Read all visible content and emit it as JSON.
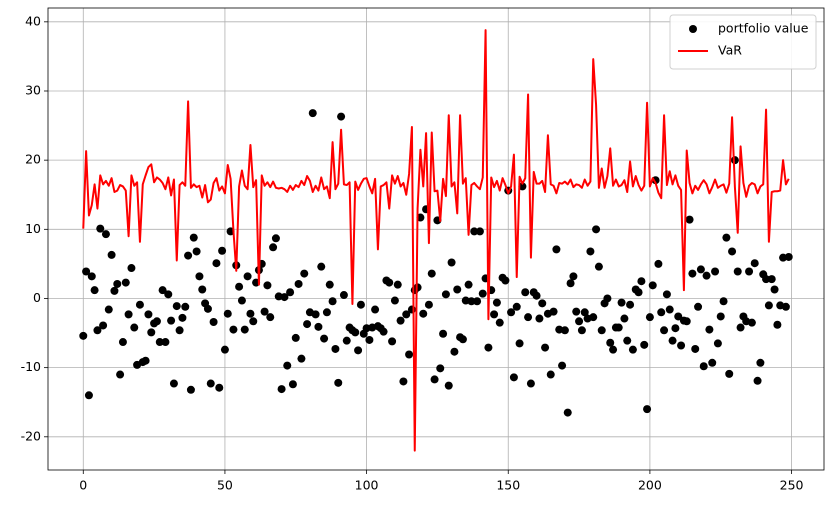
{
  "chart_data": {
    "type": "scatter",
    "x": [
      0,
      1,
      2,
      3,
      4,
      5,
      6,
      7,
      8,
      9,
      10,
      11,
      12,
      13,
      14,
      15,
      16,
      17,
      18,
      19,
      20,
      21,
      22,
      23,
      24,
      25,
      26,
      27,
      28,
      29,
      30,
      31,
      32,
      33,
      34,
      35,
      36,
      37,
      38,
      39,
      40,
      41,
      42,
      43,
      44,
      45,
      46,
      47,
      48,
      49,
      50,
      51,
      52,
      53,
      54,
      55,
      56,
      57,
      58,
      59,
      60,
      61,
      62,
      63,
      64,
      65,
      66,
      67,
      68,
      69,
      70,
      71,
      72,
      73,
      74,
      75,
      76,
      77,
      78,
      79,
      80,
      81,
      82,
      83,
      84,
      85,
      86,
      87,
      88,
      89,
      90,
      91,
      92,
      93,
      94,
      95,
      96,
      97,
      98,
      99,
      100,
      101,
      102,
      103,
      104,
      105,
      106,
      107,
      108,
      109,
      110,
      111,
      112,
      113,
      114,
      115,
      116,
      117,
      118,
      119,
      120,
      121,
      122,
      123,
      124,
      125,
      126,
      127,
      128,
      129,
      130,
      131,
      132,
      133,
      134,
      135,
      136,
      137,
      138,
      139,
      140,
      141,
      142,
      143,
      144,
      145,
      146,
      147,
      148,
      149,
      150,
      151,
      152,
      153,
      154,
      155,
      156,
      157,
      158,
      159,
      160,
      161,
      162,
      163,
      164,
      165,
      166,
      167,
      168,
      169,
      170,
      171,
      172,
      173,
      174,
      175,
      176,
      177,
      178,
      179,
      180,
      181,
      182,
      183,
      184,
      185,
      186,
      187,
      188,
      189,
      190,
      191,
      192,
      193,
      194,
      195,
      196,
      197,
      198,
      199,
      200,
      201,
      202,
      203,
      204,
      205,
      206,
      207,
      208,
      209,
      210,
      211,
      212,
      213,
      214,
      215,
      216,
      217,
      218,
      219,
      220,
      221,
      222,
      223,
      224,
      225,
      226,
      227,
      228,
      229,
      230,
      231,
      232,
      233,
      234,
      235,
      236,
      237,
      238,
      239,
      240,
      241,
      242,
      243,
      244,
      245,
      246,
      247,
      248,
      249
    ],
    "series": [
      {
        "name": "portfolio value",
        "type": "scatter",
        "color": "#000000",
        "values": [
          -5.4,
          3.9,
          -14,
          3.2,
          1.2,
          -4.6,
          10.1,
          -3.9,
          9.3,
          -1.6,
          6.3,
          1.1,
          2.1,
          -11,
          -6.3,
          2.3,
          -2.3,
          4.4,
          -4.2,
          -9.6,
          -0.9,
          -9.2,
          -9,
          -2.3,
          -4.9,
          -3.6,
          -3.3,
          -6.3,
          1.2,
          -6.3,
          0.6,
          -3.2,
          -12.3,
          -1.1,
          -4.6,
          -2.8,
          -1.2,
          6.2,
          -13.2,
          8.8,
          6.8,
          3.2,
          1.3,
          -0.7,
          -1.5,
          -12.3,
          -3.4,
          5.1,
          -12.9,
          6.9,
          -7.4,
          -2.2,
          9.7,
          -4.5,
          4.8,
          1.7,
          -0.3,
          -4.5,
          3.2,
          -2.2,
          -3.3,
          2.3,
          4.1,
          5,
          -1.9,
          1.9,
          -2.7,
          7.4,
          8.7,
          0.3,
          -13.1,
          0.2,
          -9.7,
          0.9,
          -12.4,
          -5.7,
          2.1,
          -8.7,
          3.6,
          -3.7,
          -2,
          26.8,
          -2.3,
          -4.1,
          4.6,
          -5.8,
          -2,
          2,
          -0.4,
          -7.3,
          -12.2,
          26.3,
          0.5,
          -6.1,
          -4.2,
          -4.6,
          -4.9,
          -7.5,
          -0.9,
          -5.1,
          -4.3,
          -6,
          -4.2,
          -1.6,
          -4,
          -4.3,
          -4.8,
          2.6,
          2.3,
          -6.2,
          -0.3,
          2,
          -3.2,
          -12,
          -2.3,
          -8.1,
          -1.6,
          1.2,
          1.6,
          11.7,
          -2.2,
          12.9,
          -0.9,
          3.6,
          -11.7,
          11.3,
          -10.1,
          -5.1,
          0.6,
          -12.6,
          5.2,
          -7.7,
          1.3,
          -5.6,
          -5.9,
          -0.3,
          2,
          -0.4,
          9.7,
          -0.4,
          9.7,
          0.7,
          2.9,
          -7.1,
          1.2,
          -2.3,
          -0.6,
          -3.5,
          3,
          2.6,
          15.6,
          -2,
          -11.4,
          -1.2,
          -6.5,
          16.2,
          0.9,
          -2.7,
          -12.3,
          0.9,
          0.4,
          -2.9,
          -0.7,
          -7.1,
          -2.2,
          -11,
          -1.9,
          7.1,
          -4.5,
          -9.7,
          -4.6,
          -16.5,
          2.2,
          3.2,
          -1.9,
          -3.3,
          -4.6,
          -2,
          -2.9,
          6.8,
          -2.7,
          10,
          4.6,
          -4.6,
          -0.7,
          0,
          -6.4,
          -7.4,
          -4.2,
          -4.2,
          -0.6,
          -2.9,
          -6.1,
          -0.9,
          -7.4,
          1.3,
          0.9,
          2.5,
          -6.7,
          -16,
          -2.7,
          1.9,
          17.1,
          5,
          -2,
          -4.6,
          0.6,
          -1.6,
          -6.1,
          -4.3,
          -2.6,
          -6.8,
          -3.2,
          -3.3,
          11.4,
          3.6,
          -7.3,
          -1.2,
          4.2,
          -9.8,
          3.3,
          -4.5,
          -9.3,
          3.9,
          -6.5,
          -2.6,
          -0.4,
          8.8,
          -10.9,
          6.8,
          20,
          3.9,
          -4.2,
          -2.6,
          -3.3,
          3.9,
          -3.5,
          5.1,
          -11.9,
          -9.3,
          3.5,
          2.8,
          -1,
          2.8,
          1.3,
          -3.8,
          -1,
          5.9,
          -1.2,
          6
        ]
      },
      {
        "name": "VaR",
        "type": "line",
        "color": "#ff0000",
        "values": [
          10.1,
          21.3,
          12,
          13.5,
          16.5,
          13,
          17.8,
          16.5,
          17,
          16.3,
          17.4,
          15.4,
          15.6,
          16.4,
          16.2,
          15.6,
          9,
          17.8,
          16.3,
          16.8,
          8.2,
          16.5,
          17.8,
          19,
          19.4,
          16.8,
          17.5,
          17.2,
          16.7,
          15.8,
          17.5,
          14.9,
          17.2,
          5.5,
          16.4,
          16.8,
          16.3,
          28.5,
          16,
          16.5,
          16.1,
          16.3,
          14.6,
          16.4,
          13.9,
          14.3,
          16.7,
          17.4,
          15.6,
          16.2,
          15.2,
          19.3,
          17.3,
          9.8,
          4,
          16.2,
          18.5,
          16.3,
          15.8,
          22.2,
          16.1,
          17.1,
          2,
          17.8,
          16.3,
          16.8,
          16.1,
          16.9,
          16,
          15.9,
          16,
          15.8,
          15.4,
          16.3,
          15.7,
          16.4,
          16.1,
          17,
          16.4,
          17.7,
          17,
          15.4,
          16.3,
          15.6,
          17.5,
          15.8,
          16.2,
          14.5,
          22.6,
          15.8,
          16.6,
          24.4,
          16.5,
          16.4,
          16.8,
          -0.8,
          16.9,
          15.7,
          16.6,
          17.3,
          17.4,
          16.2,
          15.2,
          17.3,
          7.1,
          16.2,
          16.4,
          16.8,
          13,
          17.8,
          16.6,
          17.7,
          16.2,
          16.7,
          15,
          18,
          24.8,
          -22,
          13,
          21.5,
          16.2,
          23.9,
          8,
          24,
          15.5,
          15.6,
          11.2,
          17.3,
          14.8,
          26.5,
          16.2,
          16.8,
          12.3,
          26.5,
          16.6,
          17.4,
          9.2,
          16.4,
          16.7,
          16.2,
          15.8,
          17.5,
          38.8,
          -3,
          17.5,
          16.1,
          17,
          15.6,
          17.4,
          16.4,
          15.2,
          16.2,
          20.8,
          3.1,
          17.6,
          16.6,
          17.4,
          29.5,
          5.9,
          18.3,
          16.6,
          16.6,
          17,
          15.4,
          23.6,
          16.5,
          16.3,
          15.2,
          16.7,
          16.6,
          16.9,
          16.5,
          17.2,
          16.1,
          16.5,
          16.4,
          16,
          17.2,
          16.3,
          16.9,
          34.6,
          28,
          16,
          18.8,
          16,
          17.7,
          21.7,
          16.3,
          17.2,
          16.2,
          16.4,
          17.1,
          15.4,
          19.8,
          16.2,
          17.7,
          16.4,
          15.6,
          16.3,
          28.3,
          16.2,
          17.4,
          16.7,
          15.3,
          14.5,
          26.5,
          16.4,
          18.4,
          16.5,
          17.8,
          16.3,
          15.7,
          1.2,
          21.4,
          16.7,
          15.2,
          16.3,
          15.7,
          16.5,
          17.1,
          16.5,
          15.2,
          16.1,
          17.2,
          16,
          16.3,
          16.5,
          15.3,
          16.6,
          26.2,
          16.1,
          9.5,
          22,
          16.7,
          14.7,
          16.3,
          16.7,
          16.5,
          15.2,
          16.2,
          16.5,
          27.3,
          8.2,
          15.4,
          15.5,
          15.5,
          15.6,
          20,
          16.5,
          17.3
        ]
      }
    ],
    "xlim": [
      -12.45,
      261.45
    ],
    "ylim": [
      -24.8,
      42.0
    ],
    "xticks": [
      0,
      50,
      100,
      150,
      200,
      250
    ],
    "yticks": [
      -20,
      -10,
      0,
      10,
      20,
      30,
      40
    ],
    "grid": true,
    "legend": "upper right"
  }
}
